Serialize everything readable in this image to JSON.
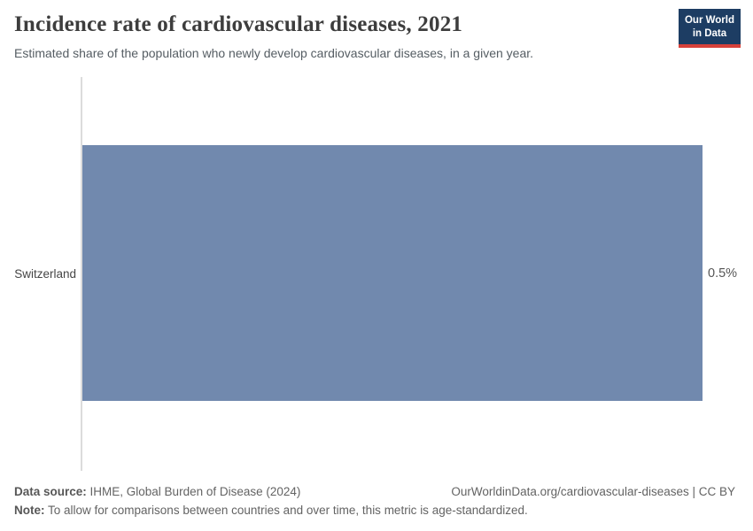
{
  "header": {
    "logo": {
      "line1": "Our World",
      "line2": "in Data",
      "bg_color": "#1d3d63",
      "accent_color": "#d7413a"
    }
  },
  "chart_data": {
    "type": "bar",
    "orientation": "horizontal",
    "title": "Incidence rate of cardiovascular diseases, 2021",
    "subtitle": "Estimated share of the population who newly develop cardiovascular diseases, in a given year.",
    "categories": [
      "Switzerland"
    ],
    "values": [
      0.5
    ],
    "value_labels": [
      "0.5%"
    ],
    "unit": "%",
    "xlim": [
      0,
      0.5
    ],
    "bar_color": "#7189ae",
    "axis_line_color": "#dcdcdc",
    "grid": false,
    "legend": "none"
  },
  "footer": {
    "data_source_label": "Data source:",
    "data_source_value": " IHME, Global Burden of Disease (2024)",
    "url_text": "OurWorldinData.org/cardiovascular-diseases | CC BY",
    "note_label": "Note:",
    "note_value": " To allow for comparisons between countries and over time, this metric is age-standardized."
  }
}
